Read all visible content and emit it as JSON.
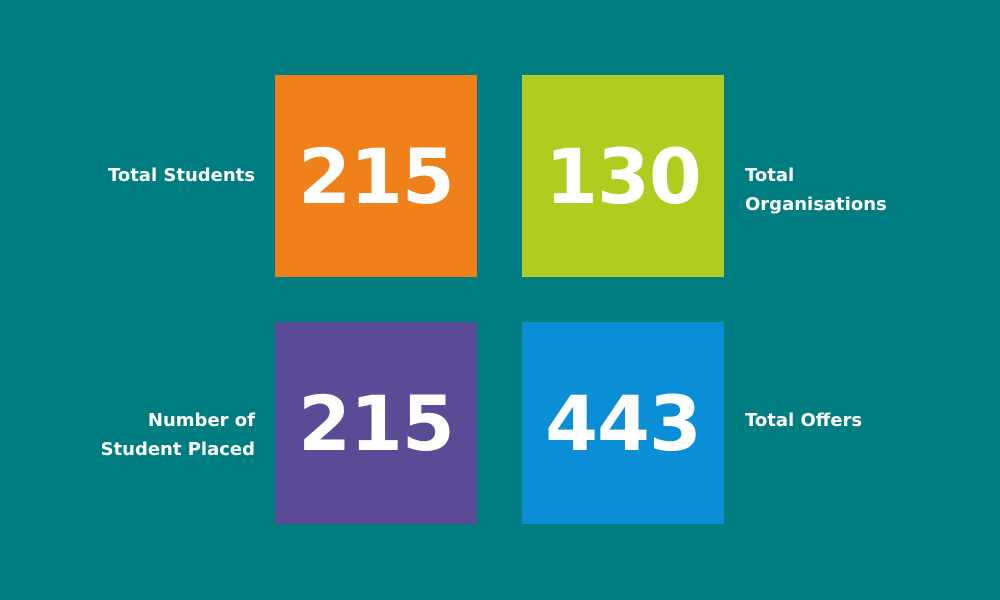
{
  "stats": [
    {
      "label_lines": [
        "Total Students"
      ],
      "value": "215",
      "color": "#f08019"
    },
    {
      "label_lines": [
        "Total",
        "Organisations"
      ],
      "value": "130",
      "color": "#b0cc1f"
    },
    {
      "label_lines": [
        "Number of",
        "Student Placed"
      ],
      "value": "215",
      "color": "#5b4b97"
    },
    {
      "label_lines": [
        "Total Offers"
      ],
      "value": "443",
      "color": "#0a8ed6"
    }
  ]
}
